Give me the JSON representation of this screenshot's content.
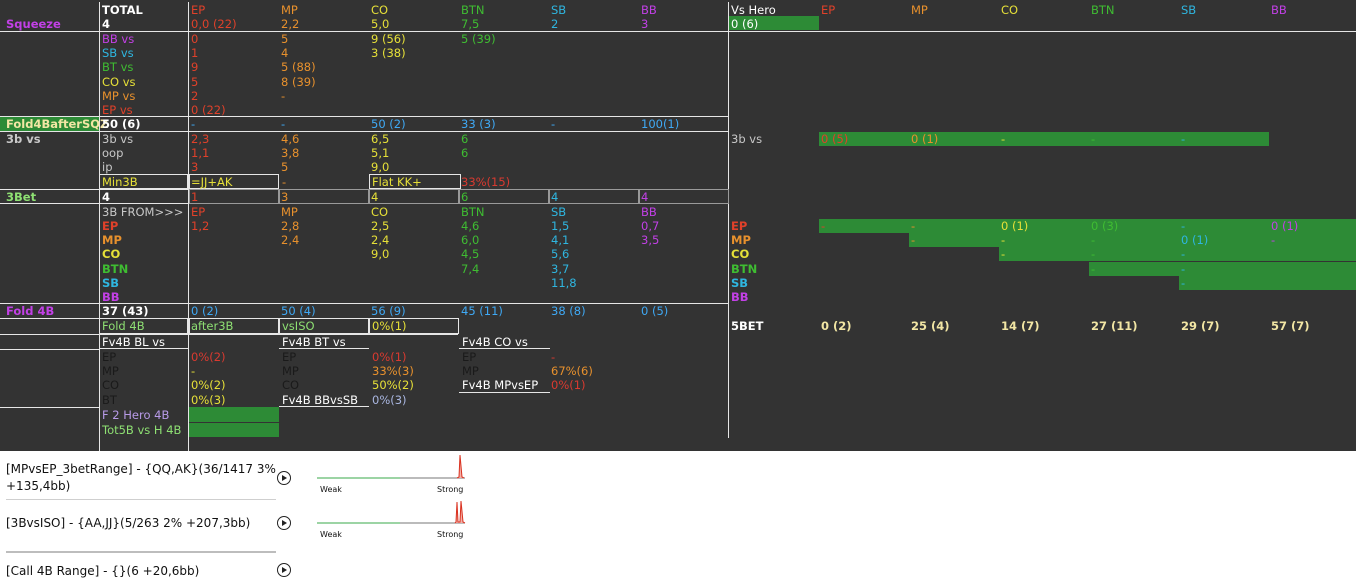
{
  "colors": {
    "bg": "#333333",
    "white": "#ffffff",
    "ep": "#e0412a",
    "mp": "#e8912d",
    "co": "#e6e038",
    "bt": "#3fbd32",
    "sb": "#2fb6e0",
    "bb": "#c240e6",
    "lime": "#8ee073",
    "blue": "#3fa9f5",
    "red": "#d93a30",
    "green": "#2d8b36",
    "cream": "#f2e6a4",
    "lilac": "#b89be8",
    "grey": "#c8c8c8"
  },
  "squeeze": {
    "label": "Squeeze",
    "total_hdr": "TOTAL",
    "total": "4",
    "positions": [
      "EP",
      "MP",
      "CO",
      "BTN",
      "SB",
      "BB"
    ],
    "values": [
      "0,0 (22)",
      "2,2",
      "5,0",
      "7,5",
      "2",
      "3"
    ],
    "rows": [
      {
        "label": "BB vs",
        "v": [
          "0",
          "5",
          "9 (56)",
          "5 (39)"
        ]
      },
      {
        "label": "SB vs",
        "v": [
          "1",
          "4",
          "3 (38)"
        ]
      },
      {
        "label": "BT vs",
        "v": [
          "9",
          "5 (88)"
        ]
      },
      {
        "label": "CO vs",
        "v": [
          "5",
          "8 (39)"
        ]
      },
      {
        "label": "MP vs",
        "v": [
          "2",
          "-"
        ]
      },
      {
        "label": "EP vs",
        "v": [
          "0 (22)"
        ]
      }
    ]
  },
  "vshero": {
    "label": "Vs Hero",
    "value": "0 (6)",
    "positions": [
      "EP",
      "MP",
      "CO",
      "BTN",
      "SB",
      "BB"
    ]
  },
  "fold4b_sqz": {
    "label": "Fold4BafterSQZ",
    "total": "50 (6)",
    "values": [
      "-",
      "-",
      "50 (2)",
      "33 (3)",
      "-",
      "100(1)"
    ]
  },
  "threebet_vs": {
    "label": "3b vs",
    "rows": [
      {
        "label": "3b vs",
        "v": [
          "2,3",
          "4,6",
          "6,5",
          "6"
        ]
      },
      {
        "label": "oop",
        "v": [
          "1,1",
          "3,8",
          "5,1",
          "6"
        ]
      },
      {
        "label": "ip",
        "v": [
          "3",
          "5",
          "9,0"
        ]
      }
    ],
    "right_label": "3b vs",
    "right_values": [
      "0 (5)",
      "0 (1)",
      "-",
      "-",
      "-"
    ],
    "min3b_label": "Min3B",
    "min3b_value": "=JJ+AK",
    "min3b_dash": "-",
    "flat_label": "Flat KK+",
    "flat_value": "33%(15)"
  },
  "threebet": {
    "label": "3Bet",
    "total": "4",
    "values": [
      "1",
      "3",
      "4",
      "6",
      "4",
      "4"
    ],
    "from_label": "3B FROM>>>",
    "from_positions": [
      "EP",
      "MP",
      "CO",
      "BTN",
      "SB",
      "BB"
    ],
    "rows": [
      {
        "label": "EP",
        "v": [
          "1,2",
          "2,8",
          "2,5",
          "4,6",
          "1,5",
          "0,7"
        ]
      },
      {
        "label": "MP",
        "v": [
          "2,4",
          "2,4",
          "6,0",
          "4,1",
          "3,5"
        ]
      },
      {
        "label": "CO",
        "v": [
          "9,0",
          "4,5",
          "5,6"
        ]
      },
      {
        "label": "BTN",
        "v": [
          "7,4",
          "3,7"
        ]
      },
      {
        "label": "SB",
        "v": [
          "11,8"
        ]
      },
      {
        "label": "BB",
        "v": []
      }
    ],
    "matrix_labels": [
      "EP",
      "MP",
      "CO",
      "BTN",
      "SB",
      "BB"
    ],
    "matrix": [
      [
        "-",
        "-",
        "0 (1)",
        "0 (3)",
        "-",
        "0 (1)"
      ],
      [
        "-",
        "-",
        "-",
        "0 (1)",
        "-"
      ],
      [
        "-",
        "-",
        "-"
      ],
      [
        "-",
        "-"
      ],
      [
        "-"
      ]
    ]
  },
  "fold4b": {
    "label": "Fold 4B",
    "total": "37 (43)",
    "values": [
      "0 (2)",
      "50 (4)",
      "56 (9)",
      "45 (11)",
      "38 (8)",
      "0 (5)"
    ],
    "sub_label": "Fold 4B",
    "after3b": "after3B",
    "vsiso": "vsISO",
    "vsiso_val": "0%(1)",
    "bl_title": "Fv4B BL vs",
    "bl_rows": [
      {
        "l": "EP",
        "v": "0%(2)"
      },
      {
        "l": "MP",
        "v": "-"
      },
      {
        "l": "CO",
        "v": "0%(2)"
      },
      {
        "l": "BT",
        "v": "0%(3)"
      }
    ],
    "bt_title": "Fv4B BT vs",
    "bt_rows": [
      {
        "l": "EP",
        "v": "0%(1)"
      },
      {
        "l": "MP",
        "v": "33%(3)"
      },
      {
        "l": "CO",
        "v": "50%(2)"
      }
    ],
    "bbvssb_label": "Fv4B BBvsSB",
    "bbvssb_val": "0%(3)",
    "co_title": "Fv4B CO vs",
    "co_rows": [
      {
        "l": "EP",
        "v": "-"
      },
      {
        "l": "MP",
        "v": "67%(6)"
      }
    ],
    "mpvsep_label": "Fv4B MPvsEP",
    "mpvsep_val": "0%(1)",
    "f2hero": "F 2 Hero 4B",
    "tot5b": "Tot5B vs H 4B"
  },
  "fivebet": {
    "label": "5BET",
    "values": [
      "0 (2)",
      "25 (4)",
      "14 (7)",
      "27 (11)",
      "29 (7)",
      "57 (7)"
    ]
  },
  "popups": [
    {
      "line1": "[MPvsEP_3betRange] - {QQ,AK}(36/1417 3%",
      "line2": "+135,4bb)",
      "weak": "Weak",
      "strong": "Strong"
    },
    {
      "line1": "[3BvsISO] - {AA,JJ}(5/263 2% +207,3bb)",
      "weak": "Weak",
      "strong": "Strong"
    },
    {
      "line1": "[Call 4B Range] - {}(6 +20,6bb)"
    }
  ]
}
